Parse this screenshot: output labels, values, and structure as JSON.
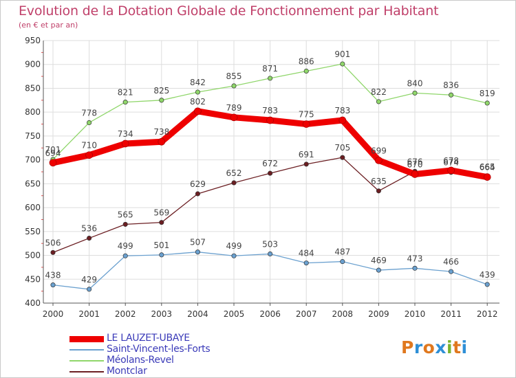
{
  "header": {
    "title": "Evolution de la Dotation Globale de Fonctionnement par Habitant",
    "subtitle": "(en € et par an)"
  },
  "logo": {
    "text": "Proxiti",
    "colors": [
      "#e0781e",
      "#2e8fd6",
      "#e0781e",
      "#2e8fd6",
      "#7ab32e",
      "#e0781e",
      "#2e8fd6"
    ]
  },
  "chart_data": {
    "type": "line",
    "categories": [
      "2000",
      "2001",
      "2002",
      "2003",
      "2004",
      "2005",
      "2006",
      "2007",
      "2008",
      "2009",
      "2010",
      "2011",
      "2012"
    ],
    "ylim": [
      400,
      950
    ],
    "yticks": [
      400,
      450,
      500,
      550,
      600,
      650,
      700,
      750,
      800,
      850,
      900,
      950
    ],
    "grid": true,
    "legend_position": "bottom-left",
    "series": [
      {
        "name": "Méolans-Revel",
        "color": "#8fd66a",
        "values": [
          701,
          778,
          821,
          825,
          842,
          855,
          871,
          886,
          901,
          822,
          840,
          836,
          819
        ]
      },
      {
        "name": "Montclar",
        "color": "#6b1e22",
        "values": [
          506,
          536,
          565,
          569,
          629,
          652,
          672,
          691,
          705,
          635,
          676,
          674,
          665
        ]
      },
      {
        "name": "Saint-Vincent-les-Forts",
        "color": "#6aa0cf",
        "values": [
          438,
          429,
          499,
          501,
          507,
          499,
          503,
          484,
          487,
          469,
          473,
          466,
          439
        ]
      },
      {
        "name": "LE LAUZET-UBAYE",
        "color": "#ee0000",
        "values": [
          694,
          710,
          734,
          738,
          802,
          789,
          783,
          775,
          783,
          699,
          670,
          678,
          664
        ]
      }
    ],
    "legend_order": [
      "LE LAUZET-UBAYE",
      "Saint-Vincent-les-Forts",
      "Méolans-Revel",
      "Montclar"
    ]
  }
}
